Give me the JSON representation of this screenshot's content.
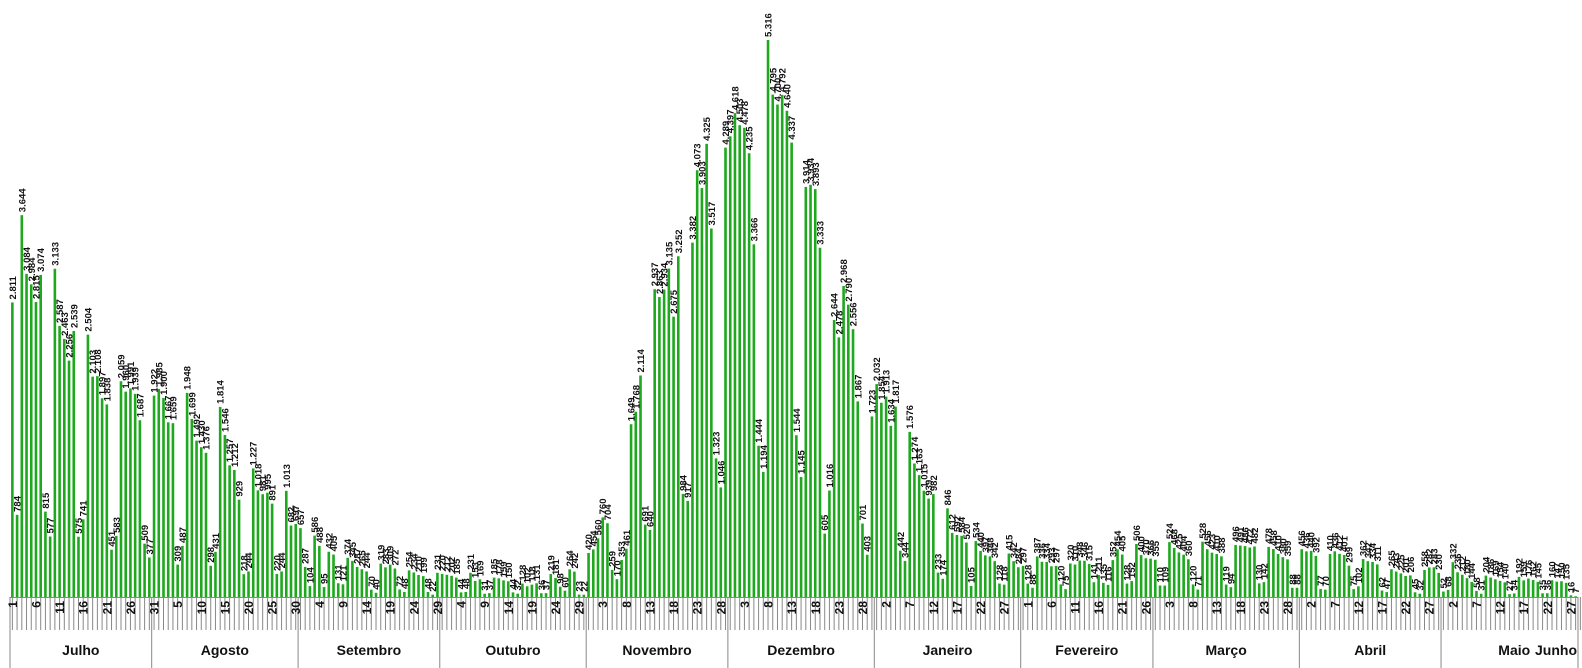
{
  "chart_data": {
    "type": "bar",
    "title": "",
    "xlabel": "",
    "ylabel": "",
    "grid": false,
    "colors": {
      "bar": "#1ea81e",
      "axis": "#888888",
      "text": "#111111"
    },
    "ylim": [
      0,
      5600
    ],
    "months": [
      {
        "name": "Julho",
        "days": 30
      },
      {
        "name": "Agosto",
        "days": 31
      },
      {
        "name": "Setembro",
        "days": 30
      },
      {
        "name": "Outubro",
        "days": 31
      },
      {
        "name": "Novembro",
        "days": 30
      },
      {
        "name": "Dezembro",
        "days": 31
      },
      {
        "name": "Janeiro",
        "days": 31
      },
      {
        "name": "Fevereiro",
        "days": 28
      },
      {
        "name": "Março",
        "days": 31
      },
      {
        "name": "Abril",
        "days": 30
      },
      {
        "name": "Maio",
        "days": 31
      },
      {
        "name": "Junho",
        "days": 4
      }
    ],
    "tick_labels": [
      "1",
      "6",
      "11",
      "16",
      "21",
      "26",
      "31",
      "5",
      "10",
      "15",
      "20",
      "25",
      "30",
      "4",
      "9",
      "14",
      "19",
      "24",
      "29",
      "4",
      "9",
      "14",
      "19",
      "24",
      "29",
      "3",
      "8",
      "13",
      "18",
      "23",
      "28",
      "3",
      "8",
      "13",
      "18",
      "23",
      "28",
      "2",
      "7",
      "12",
      "17",
      "22",
      "27",
      "1",
      "6",
      "11",
      "16",
      "21",
      "26",
      "3",
      "8",
      "13",
      "18",
      "23",
      "28",
      "2",
      "7",
      "12",
      "17",
      "22",
      "27",
      "2",
      "7",
      "12",
      "17",
      "22",
      "27",
      "1"
    ],
    "values": [
      2811,
      784,
      3644,
      3084,
      2984,
      2815,
      3074,
      815,
      577,
      3133,
      2587,
      2463,
      2256,
      2539,
      575,
      741,
      2504,
      2103,
      2108,
      1897,
      1838,
      451,
      583,
      2059,
      1960,
      1991,
      1939,
      1687,
      509,
      377,
      1922,
      1985,
      1900,
      1667,
      1659,
      309,
      487,
      1948,
      1699,
      1492,
      1430,
      1376,
      298,
      431,
      1814,
      1546,
      1257,
      1212,
      929,
      218,
      244,
      1227,
      1018,
      981,
      995,
      891,
      220,
      244,
      1013,
      682,
      697,
      657,
      287,
      104,
      586,
      488,
      95,
      432,
      405,
      131,
      121,
      374,
      345,
      287,
      265,
      244,
      70,
      40,
      319,
      283,
      309,
      272,
      72,
      48,
      254,
      234,
      210,
      199,
      48,
      22,
      231,
      220,
      212,
      202,
      185,
      44,
      48,
      231,
      153,
      169,
      31,
      37,
      185,
      178,
      159,
      150,
      44,
      32,
      128,
      102,
      118,
      131,
      36,
      37,
      219,
      181,
      98,
      60,
      264,
      242,
      23,
      22,
      420,
      454,
      560,
      760,
      704,
      259,
      170,
      353,
      461,
      1649,
      1768,
      2114,
      691,
      640,
      2937,
      2863,
      2934,
      3135,
      2675,
      3252,
      984,
      917,
      3382,
      4073,
      3903,
      4325,
      3517,
      1323,
      1046,
      4289,
      4397,
      4618,
      4503,
      4478,
      4235,
      3366,
      1444,
      1194,
      5316,
      4795,
      4700,
      4792,
      4640,
      4337,
      1544,
      1145,
      3914,
      3934,
      3893,
      3333,
      605,
      1016,
      2644,
      2478,
      2968,
      2790,
      2556,
      1867,
      701,
      403,
      1723,
      2032,
      1854,
      1913,
      1634,
      1817,
      442,
      344,
      1576,
      1274,
      1163,
      1015,
      939,
      982,
      233,
      174,
      846,
      612,
      592,
      584,
      520,
      105,
      534,
      440,
      397,
      388,
      342,
      128,
      118,
      415,
      342,
      284,
      297,
      128,
      88,
      387,
      336,
      334,
      293,
      297,
      120,
      75,
      320,
      310,
      348,
      346,
      315,
      141,
      211,
      135,
      116,
      352,
      454,
      405,
      128,
      152,
      506,
      400,
      370,
      366,
      355,
      110,
      109,
      524,
      468,
      425,
      404,
      360,
      120,
      71,
      528,
      456,
      423,
      410,
      388,
      119,
      94,
      496,
      491,
      486,
      472,
      482,
      130,
      142,
      478,
      458,
      410,
      380,
      359,
      88,
      88,
      456,
      436,
      440,
      392,
      77,
      70,
      410,
      436,
      412,
      401,
      299,
      75,
      102,
      362,
      342,
      334,
      311,
      62,
      47,
      265,
      243,
      225,
      201,
      206,
      45,
      32,
      258,
      282,
      283,
      230,
      52,
      68,
      332,
      236,
      212,
      180,
      144,
      58,
      31,
      204,
      186,
      169,
      154,
      140,
      27,
      34,
      192,
      159,
      176,
      162,
      145,
      35,
      36,
      160,
      147,
      150,
      135,
      16,
      7
    ]
  }
}
